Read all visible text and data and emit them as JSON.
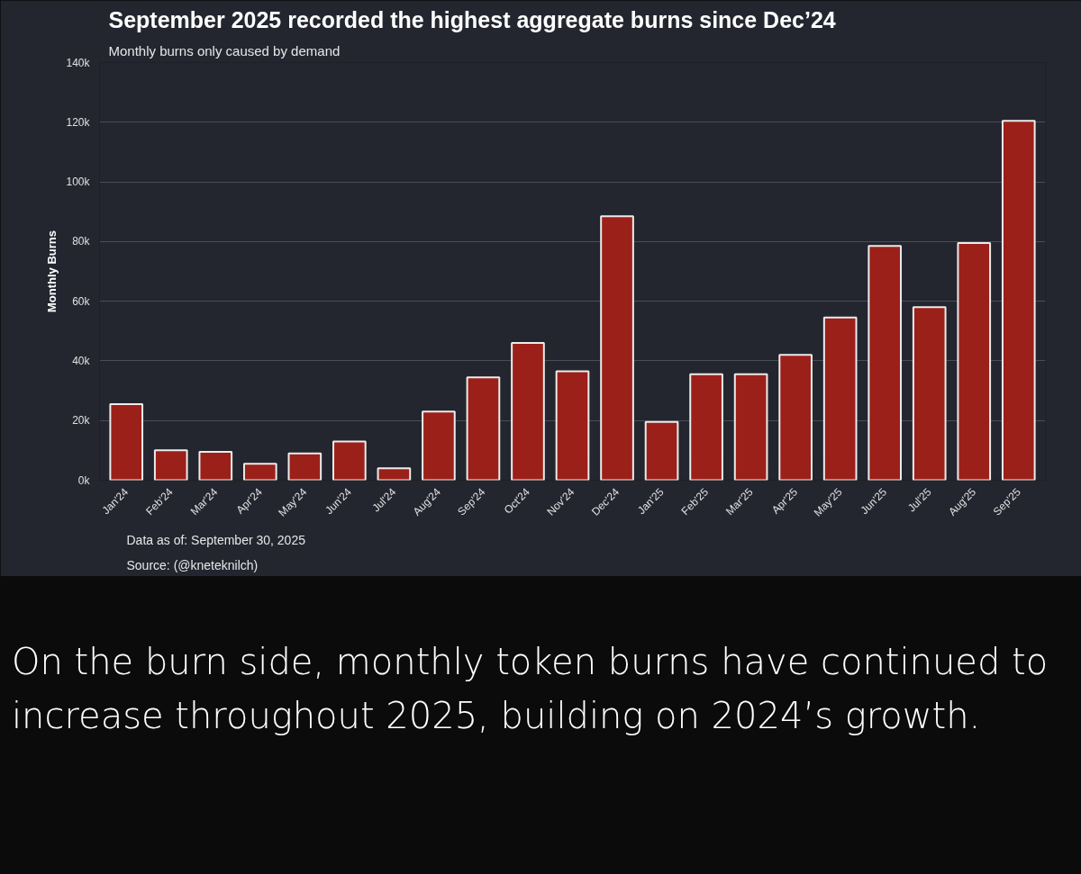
{
  "chart_data": {
    "type": "bar",
    "title": "September 2025 recorded the highest aggregate burns since Dec’24",
    "subtitle": "Monthly burns only caused by demand",
    "ylabel": "Monthly Burns",
    "categories": [
      "Jan'24",
      "Feb'24",
      "Mar'24",
      "Apr'24",
      "May'24",
      "Jun'24",
      "Jul'24",
      "Aug'24",
      "Sep'24",
      "Oct'24",
      "Nov'24",
      "Dec'24",
      "Jan'25",
      "Feb'25",
      "Mar'25",
      "Apr'25",
      "May'25",
      "Jun'25",
      "Jul'25",
      "Aug'25",
      "Sep'25"
    ],
    "values": [
      25500,
      10000,
      9500,
      5500,
      9000,
      13000,
      4000,
      23000,
      34500,
      46000,
      36500,
      88500,
      19500,
      35500,
      35500,
      42000,
      54500,
      78500,
      58000,
      79500,
      120500
    ],
    "color": "#9b2019",
    "ylim": [
      0,
      140000
    ],
    "yticks": [
      {
        "value": 0,
        "label": "0k"
      },
      {
        "value": 20000,
        "label": "20k"
      },
      {
        "value": 40000,
        "label": "40k"
      },
      {
        "value": 60000,
        "label": "60k"
      },
      {
        "value": 80000,
        "label": "80k"
      },
      {
        "value": 100000,
        "label": "100k"
      },
      {
        "value": 120000,
        "label": "120k"
      },
      {
        "value": 140000,
        "label": "140k"
      }
    ],
    "grid": "y",
    "annotations": [
      "Data as of: September 30, 2025",
      "Source: (@kneteknilch)",
      "On the burn side, monthly token burns have continued to increase throughout 2025, building on 2024’s growth."
    ]
  }
}
